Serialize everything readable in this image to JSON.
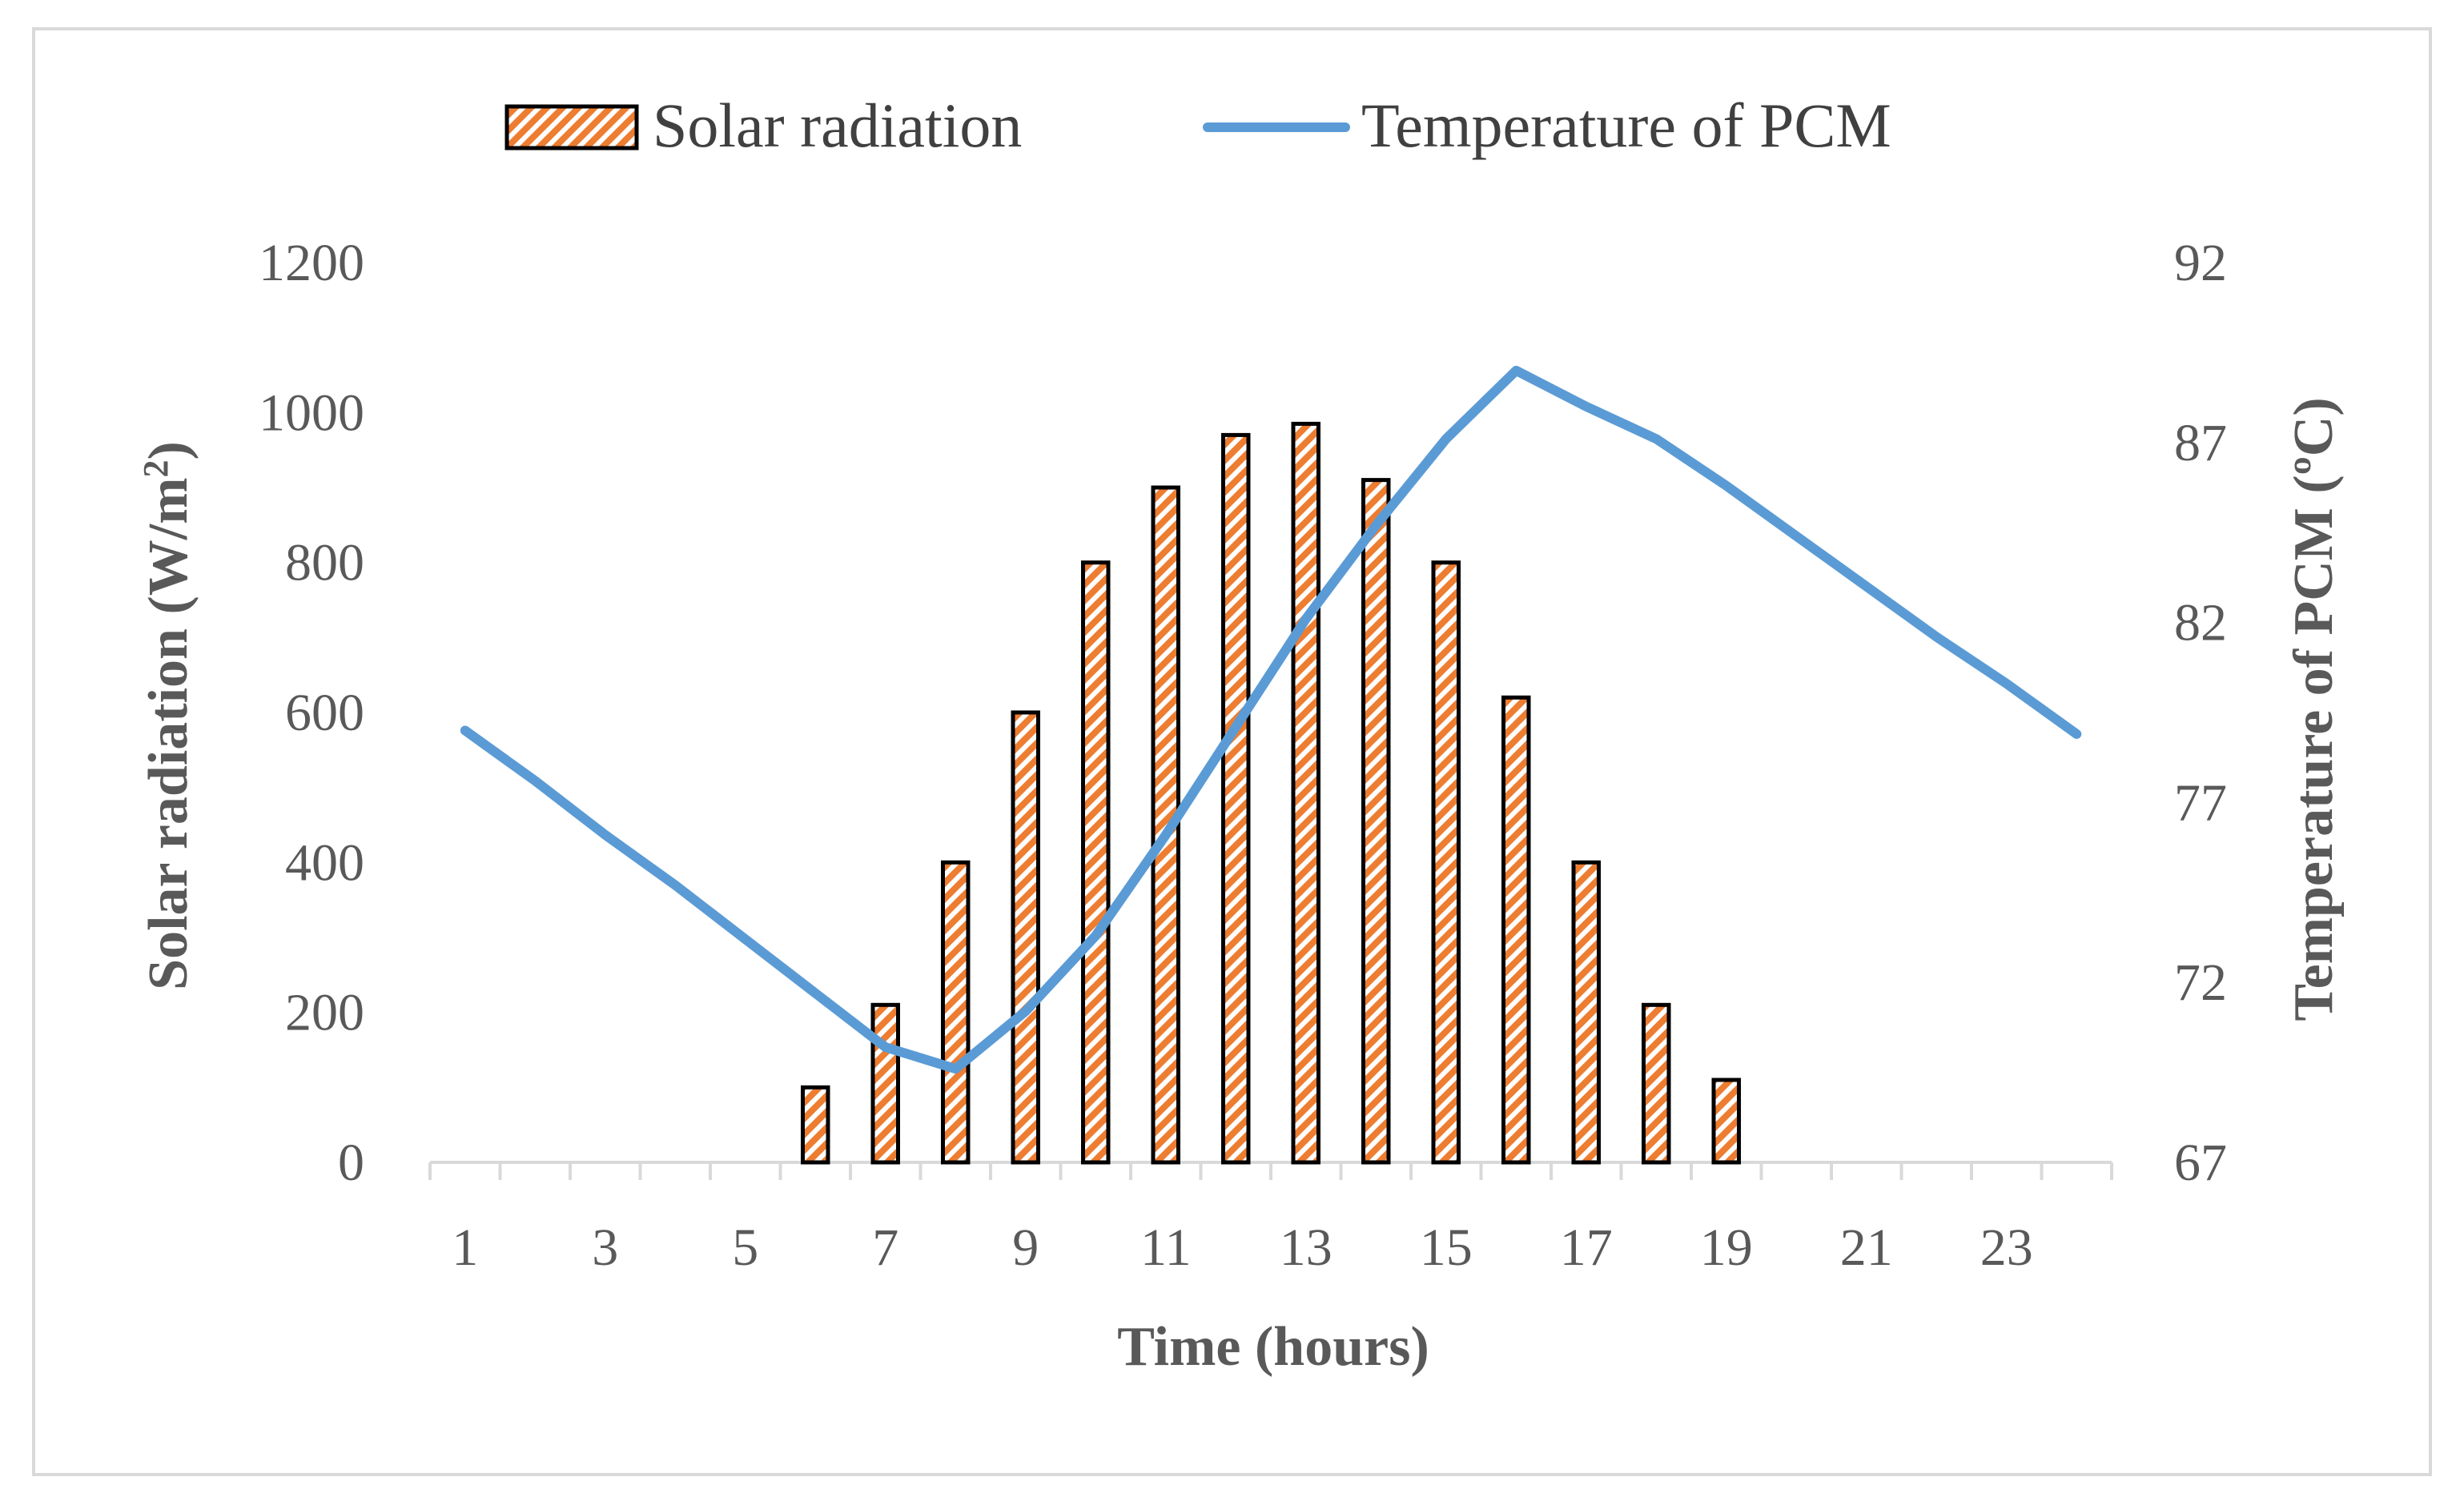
{
  "chart_data": {
    "type": "bar",
    "x": [
      1,
      2,
      3,
      4,
      5,
      6,
      7,
      8,
      9,
      10,
      11,
      12,
      13,
      14,
      15,
      16,
      17,
      18,
      19,
      20,
      21,
      22,
      23,
      24
    ],
    "x_tick_labels": [
      "1",
      "3",
      "5",
      "7",
      "9",
      "11",
      "13",
      "15",
      "17",
      "19",
      "21",
      "23"
    ],
    "xlabel": "Time (hours)",
    "ylabel_left": "Solar radiation (W/m²)",
    "ylabel_left_base": "Solar radiation (W/m",
    "ylabel_left_sup": "2",
    "ylabel_left_close": ")",
    "ylabel_right": "Temperature of PCM (ºC)",
    "ylim_left": [
      0,
      1200
    ],
    "ylim_right": [
      67,
      92
    ],
    "y_left_ticks": [
      0,
      200,
      400,
      600,
      800,
      1000,
      1200
    ],
    "y_right_ticks": [
      67,
      72,
      77,
      82,
      87,
      92
    ],
    "legend_position": "top",
    "grid": false,
    "series": [
      {
        "name": "Solar radiation",
        "type": "bar",
        "axis": "left",
        "color": "#ed7d31",
        "values": [
          0,
          0,
          0,
          0,
          0,
          100,
          210,
          400,
          600,
          800,
          900,
          970,
          985,
          910,
          800,
          620,
          400,
          210,
          110,
          0,
          0,
          0,
          0,
          0
        ]
      },
      {
        "name": "Temperature of PCM",
        "type": "line",
        "axis": "right",
        "color": "#5b9bd5",
        "values": [
          79.0,
          77.6,
          76.1,
          74.7,
          73.2,
          71.7,
          70.2,
          69.6,
          71.2,
          73.3,
          76.1,
          79.1,
          82.1,
          84.7,
          87.1,
          89.0,
          88.0,
          87.1,
          85.8,
          84.4,
          83.0,
          81.6,
          80.3,
          78.9
        ]
      }
    ]
  }
}
